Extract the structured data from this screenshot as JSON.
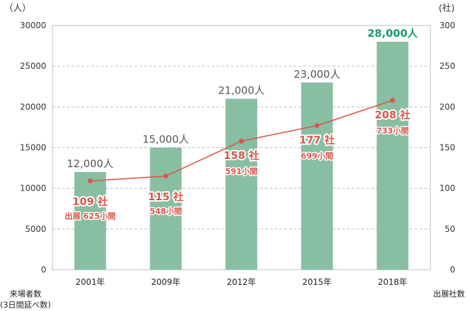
{
  "chart_data": {
    "type": "bar",
    "categories": [
      "2001年",
      "2009年",
      "2012年",
      "2015年",
      "2018年"
    ],
    "left_axis": {
      "unit_label": "（人）",
      "ylim": [
        0,
        30000
      ],
      "ticks": [
        "0",
        "5000",
        "10000",
        "15000",
        "20000",
        "25000",
        "30000"
      ],
      "footer_line1": "来場者数",
      "footer_line2": "(3日間延べ数)"
    },
    "right_axis": {
      "unit_label": "(社)",
      "ylim": [
        0,
        300
      ],
      "ticks": [
        "0",
        "50",
        "100",
        "150",
        "200",
        "250",
        "300"
      ],
      "footer": "出展社数"
    },
    "series": [
      {
        "type": "bar",
        "axis": "left",
        "values": [
          12000,
          15000,
          21000,
          23000,
          28000
        ],
        "data_labels": [
          "12,000人",
          "15,000人",
          "21,000人",
          "23,000人",
          "28,000人"
        ],
        "color": "#88bfa3",
        "highlight_index": 4,
        "highlight_color": "#139b6e"
      },
      {
        "type": "line",
        "axis": "right",
        "values": [
          109,
          115,
          158,
          177,
          208
        ],
        "data_labels": [
          "109 社",
          "115 社",
          "158 社",
          "177 社",
          "208 社"
        ],
        "color": "#d9584b"
      }
    ],
    "booth_labels": [
      "出展 625小間",
      "548小間",
      "591小間",
      "699小間",
      "733小間"
    ],
    "grid": true,
    "legend": "none"
  }
}
